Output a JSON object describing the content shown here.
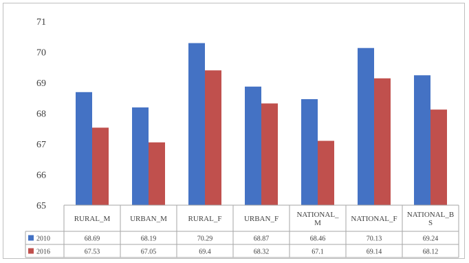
{
  "chart_data": {
    "type": "bar",
    "title": "",
    "xlabel": "",
    "ylabel": "",
    "ylim": [
      65,
      71
    ],
    "yticks": [
      65,
      66,
      67,
      68,
      69,
      70,
      71
    ],
    "grid": false,
    "legend": "data-table-left",
    "categories": [
      [
        "RURAL_M"
      ],
      [
        "URBAN_M"
      ],
      [
        "RURAL_F"
      ],
      [
        "URBAN_F"
      ],
      [
        "NATIONAL_",
        "M"
      ],
      [
        "NATIONAL_F"
      ],
      [
        "NATIONAL_B",
        "S"
      ]
    ],
    "series": [
      {
        "name": "2010",
        "color": "#4472c4",
        "values": [
          68.69,
          68.19,
          70.29,
          68.87,
          68.46,
          70.13,
          69.24
        ],
        "labels": [
          "68.69",
          "68.19",
          "70.29",
          "68.87",
          "68.46",
          "70.13",
          "69.24"
        ]
      },
      {
        "name": "2016",
        "color": "#c0504d",
        "values": [
          67.53,
          67.05,
          69.4,
          68.32,
          67.1,
          69.14,
          68.12
        ],
        "labels": [
          "67.53",
          "67.05",
          "69.4",
          "68.32",
          "67.1",
          "69.14",
          "68.12"
        ]
      }
    ]
  }
}
